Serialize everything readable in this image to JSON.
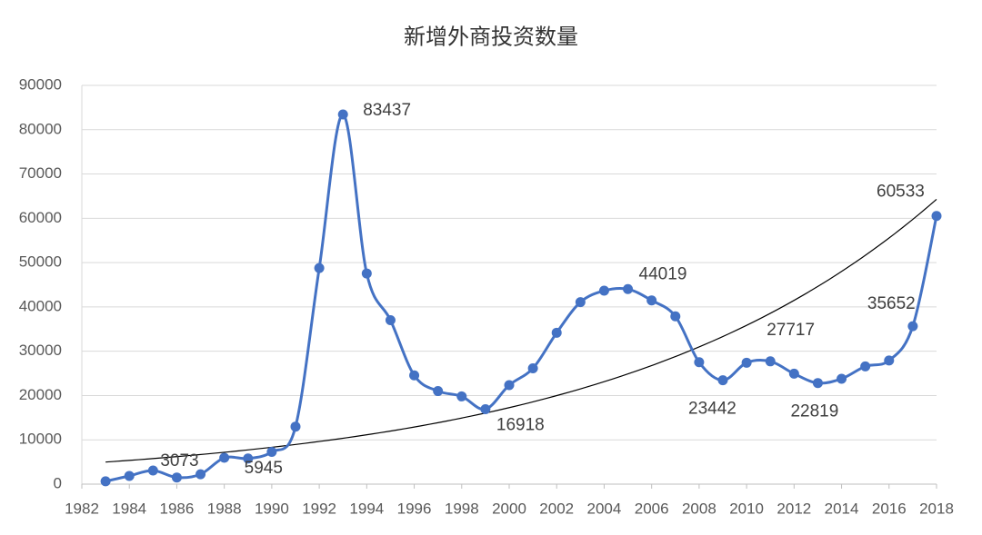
{
  "chart_data": {
    "type": "line",
    "title": "新增外商投资数量",
    "x": [
      1983,
      1984,
      1985,
      1986,
      1987,
      1988,
      1989,
      1990,
      1991,
      1992,
      1993,
      1994,
      1995,
      1996,
      1997,
      1998,
      1999,
      2000,
      2001,
      2002,
      2003,
      2004,
      2005,
      2006,
      2007,
      2008,
      2009,
      2010,
      2011,
      2012,
      2013,
      2014,
      2015,
      2016,
      2017,
      2018
    ],
    "series": [
      {
        "color": "#4472c4",
        "values": [
          638,
          1856,
          3073,
          1498,
          2233,
          5945,
          5779,
          7273,
          12978,
          48764,
          83437,
          47549,
          37011,
          24556,
          21001,
          19799,
          16918,
          22347,
          26140,
          34171,
          41081,
          43664,
          44019,
          41473,
          37871,
          27514,
          23442,
          27406,
          27717,
          24925,
          22819,
          23778,
          26575,
          27900,
          35652,
          60533
        ]
      }
    ],
    "labeled": [
      2,
      5,
      10,
      16,
      22,
      26,
      28,
      30,
      34,
      35
    ],
    "trendline": {
      "kind": "exponential",
      "color": "#000000"
    },
    "xlim": [
      1982,
      2018
    ],
    "xticks": [
      1982,
      1984,
      1986,
      1988,
      1990,
      1992,
      1994,
      1996,
      1998,
      2000,
      2002,
      2004,
      2006,
      2008,
      2010,
      2012,
      2014,
      2016,
      2018
    ],
    "ylim": [
      0,
      90000
    ],
    "yticks": [
      0,
      10000,
      20000,
      30000,
      40000,
      50000,
      60000,
      70000,
      80000,
      90000
    ],
    "grid": true,
    "smooth": true
  }
}
